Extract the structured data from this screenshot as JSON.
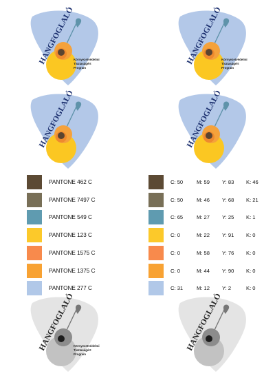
{
  "logo": {
    "wordmark": "HANGFOGLALÓ",
    "subtitle_lines": [
      "Környezetvédelmi",
      "Tisztaságért",
      "Program"
    ],
    "colors": {
      "drop": "#b3c8e8",
      "accent_blue": "#5f93aa",
      "yellow": "#fbc722",
      "orange_light": "#f5a23b",
      "orange_dark": "#ee8a2e",
      "dark_brown": "#5a4430",
      "wordmark": "#1b2f6e"
    },
    "grayscale": {
      "drop": "#e4e4e4",
      "circle_light": "#c2c2c2",
      "circle_mid": "#8c8c8c",
      "dot": "#1c1c1c",
      "bulb": "#777777",
      "wordmark": "#222222"
    }
  },
  "swatches": [
    {
      "pantone": "PANTONE 462 C",
      "color": "#5c4a34",
      "c": "C: 50",
      "m": "M: 59",
      "y": "Y: 83",
      "k": "K: 46"
    },
    {
      "pantone": "PANTONE 7497 C",
      "color": "#786f57",
      "c": "C: 50",
      "m": "M: 46",
      "y": "Y: 68",
      "k": "K: 21"
    },
    {
      "pantone": "PANTONE 549 C",
      "color": "#5f9bb0",
      "c": "C: 65",
      "m": "M: 27",
      "y": "Y: 25",
      "k": "K: 1"
    },
    {
      "pantone": "PANTONE 123 C",
      "color": "#fcc92a",
      "c": "C: 0",
      "m": "M: 22",
      "y": "Y: 91",
      "k": "K: 0"
    },
    {
      "pantone": "PANTONE 1575 C",
      "color": "#f88a4c",
      "c": "C: 0",
      "m": "M: 58",
      "y": "Y: 76",
      "k": "K: 0"
    },
    {
      "pantone": "PANTONE 1375 C",
      "color": "#f8a233",
      "c": "C: 0",
      "m": "M: 44",
      "y": "Y: 90",
      "k": "K: 0"
    },
    {
      "pantone": "PANTONE 277 C",
      "color": "#b1c8e8",
      "c": "C: 31",
      "m": "M: 12",
      "y": "Y: 2",
      "k": "K: 0"
    }
  ]
}
